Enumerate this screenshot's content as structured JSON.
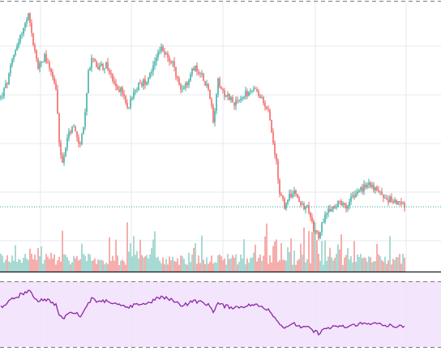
{
  "colors": {
    "up": "#26a69a",
    "down": "#ef5350",
    "volume_up": "#9fd6cf",
    "volume_down": "#f5a6a3",
    "grid": "#e6e9ee",
    "dashed_border": "#787b86",
    "last_price_line": "#26a69a",
    "indicator_line": "#8e24aa",
    "indicator_band": "#f3e5fc",
    "pane_separator": "#131722"
  },
  "chart_data": [
    {
      "type": "candlestick",
      "pane": "price",
      "x_range": [
        0,
        500
      ],
      "y_range": [
        0,
        1
      ],
      "grid": true,
      "last_value": 0.316,
      "keypoints": [
        [
          0,
          0.68
        ],
        [
          8,
          0.73
        ],
        [
          14,
          0.8
        ],
        [
          20,
          0.86
        ],
        [
          28,
          0.91
        ],
        [
          34,
          0.95
        ],
        [
          40,
          0.86
        ],
        [
          46,
          0.78
        ],
        [
          54,
          0.82
        ],
        [
          62,
          0.77
        ],
        [
          68,
          0.71
        ],
        [
          72,
          0.52
        ],
        [
          76,
          0.46
        ],
        [
          82,
          0.55
        ],
        [
          90,
          0.58
        ],
        [
          98,
          0.52
        ],
        [
          104,
          0.62
        ],
        [
          108,
          0.76
        ],
        [
          114,
          0.82
        ],
        [
          120,
          0.78
        ],
        [
          130,
          0.79
        ],
        [
          140,
          0.72
        ],
        [
          150,
          0.7
        ],
        [
          156,
          0.64
        ],
        [
          162,
          0.69
        ],
        [
          170,
          0.72
        ],
        [
          180,
          0.74
        ],
        [
          190,
          0.8
        ],
        [
          198,
          0.84
        ],
        [
          206,
          0.82
        ],
        [
          214,
          0.78
        ],
        [
          222,
          0.7
        ],
        [
          230,
          0.73
        ],
        [
          238,
          0.78
        ],
        [
          246,
          0.77
        ],
        [
          254,
          0.72
        ],
        [
          260,
          0.66
        ],
        [
          262,
          0.6
        ],
        [
          268,
          0.74
        ],
        [
          274,
          0.7
        ],
        [
          282,
          0.68
        ],
        [
          290,
          0.66
        ],
        [
          298,
          0.68
        ],
        [
          306,
          0.7
        ],
        [
          314,
          0.7
        ],
        [
          322,
          0.67
        ],
        [
          330,
          0.63
        ],
        [
          336,
          0.54
        ],
        [
          340,
          0.46
        ],
        [
          344,
          0.36
        ],
        [
          350,
          0.32
        ],
        [
          356,
          0.35
        ],
        [
          362,
          0.36
        ],
        [
          370,
          0.33
        ],
        [
          378,
          0.31
        ],
        [
          384,
          0.26
        ],
        [
          388,
          0.23
        ],
        [
          392,
          0.21
        ],
        [
          396,
          0.26
        ],
        [
          402,
          0.29
        ],
        [
          410,
          0.32
        ],
        [
          418,
          0.33
        ],
        [
          426,
          0.31
        ],
        [
          432,
          0.34
        ],
        [
          440,
          0.37
        ],
        [
          448,
          0.38
        ],
        [
          456,
          0.39
        ],
        [
          462,
          0.37
        ],
        [
          470,
          0.36
        ],
        [
          478,
          0.34
        ],
        [
          486,
          0.34
        ],
        [
          494,
          0.32
        ],
        [
          500,
          0.316
        ]
      ]
    },
    {
      "type": "bar",
      "pane": "volume",
      "x_range": [
        0,
        500
      ],
      "y_range": [
        0,
        1
      ],
      "bar_count": 250
    },
    {
      "type": "line",
      "pane": "indicator",
      "x_range": [
        0,
        500
      ],
      "y_range": [
        0,
        1
      ],
      "band": [
        0.3,
        0.7
      ]
    }
  ]
}
